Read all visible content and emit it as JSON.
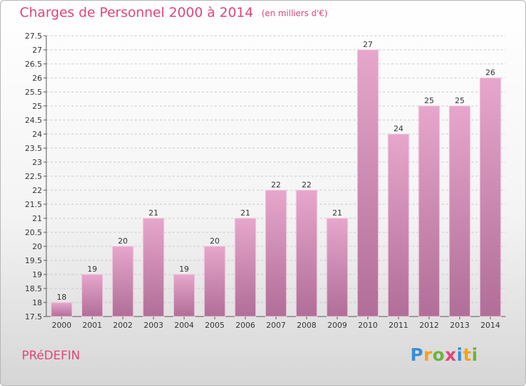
{
  "header": {
    "title": "Charges de Personnel 2000 à 2014",
    "subtitle": "(en milliers d'€)"
  },
  "footer": {
    "commune": "PRéDEFIN",
    "logo_letters": [
      "P",
      "r",
      "o",
      "x",
      "i",
      "t",
      "i"
    ],
    "logo_colors": [
      "#3a8fd6",
      "#f2a31b",
      "#6db33f",
      "#e0457b",
      "#3a8fd6",
      "#f2a31b",
      "#6db33f"
    ]
  },
  "colors": {
    "title": "#e0457b",
    "bar_top": "#e7a6cb",
    "bar_bottom": "#b06e98",
    "bar_edge": "#f1c7de",
    "grid": "#c8c8c8"
  },
  "chart_data": {
    "type": "bar",
    "categories": [
      "2000",
      "2001",
      "2002",
      "2003",
      "2004",
      "2005",
      "2006",
      "2007",
      "2008",
      "2009",
      "2010",
      "2011",
      "2012",
      "2013",
      "2014"
    ],
    "values": [
      18,
      19,
      20,
      21,
      19,
      20,
      21,
      22,
      22,
      21,
      27,
      24,
      25,
      25,
      26
    ],
    "labels": [
      "18",
      "19",
      "20",
      "21",
      "19",
      "20",
      "21",
      "22",
      "22",
      "21",
      "27",
      "24",
      "25",
      "25",
      "26"
    ],
    "yticks": [
      "17.5",
      "18",
      "18.5",
      "19",
      "19.5",
      "20",
      "20.5",
      "21",
      "21.5",
      "22",
      "22.5",
      "23",
      "23.5",
      "24",
      "24.5",
      "25",
      "25.5",
      "26",
      "26.5",
      "27",
      "27.5"
    ],
    "ylim": [
      17.5,
      27.5
    ],
    "grid": true,
    "xlabel": "",
    "ylabel": ""
  }
}
